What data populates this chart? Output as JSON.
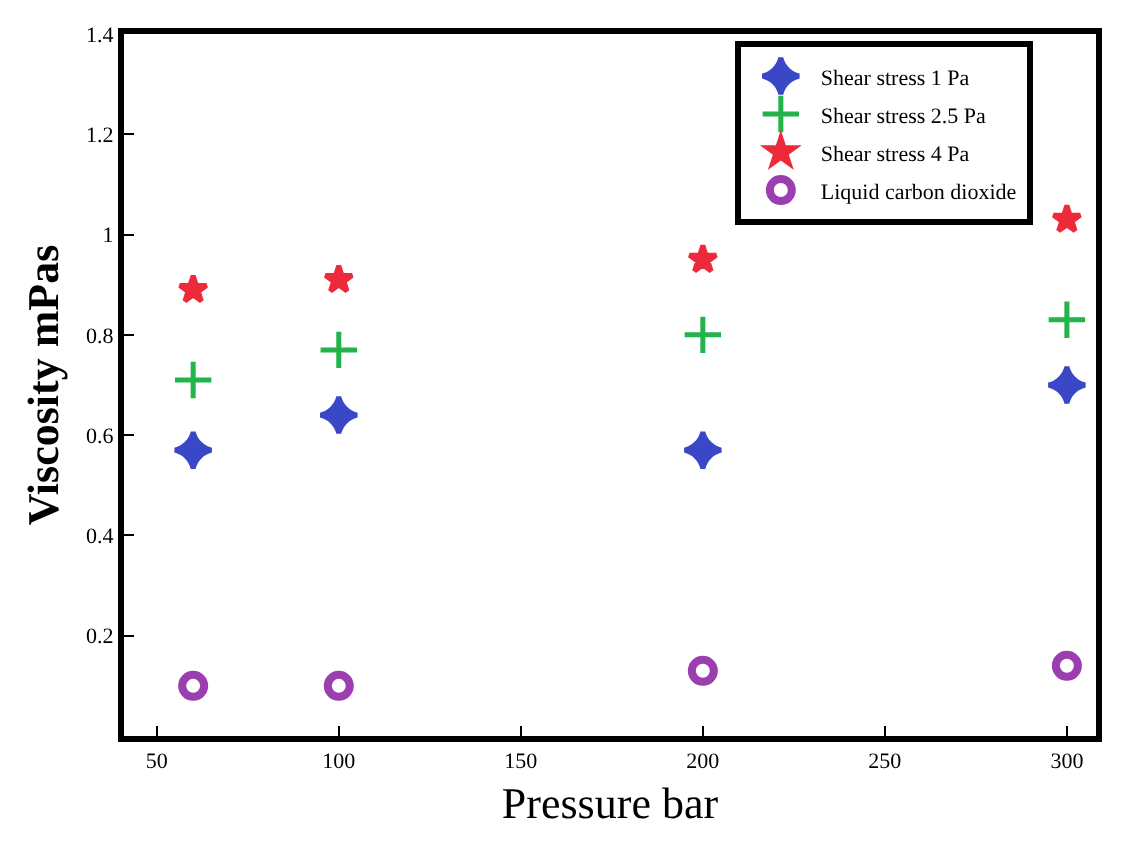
{
  "chart_data": {
    "type": "scatter",
    "xlabel": "Pressure bar",
    "ylabel": "Viscosity mPas",
    "x": [
      60,
      100,
      200,
      300
    ],
    "series": [
      {
        "name": "Shear stress 1 Pa",
        "color": "#3a48c8",
        "marker": "diamond",
        "values": [
          0.57,
          0.64,
          0.57,
          0.7
        ]
      },
      {
        "name": "Shear stress 2.5 Pa",
        "color": "#22b34a",
        "marker": "cross",
        "values": [
          0.71,
          0.77,
          0.8,
          0.83
        ]
      },
      {
        "name": "Shear stress 4 Pa",
        "color": "#ee2a3a",
        "marker": "star",
        "values": [
          0.89,
          0.91,
          0.95,
          1.03
        ]
      },
      {
        "name": "Liquid carbon dioxide",
        "color": "#9b3fb0",
        "marker": "circle",
        "values": [
          0.1,
          0.1,
          0.13,
          0.14
        ]
      }
    ],
    "xlim": [
      41,
      308
    ],
    "xticks": [
      50,
      100,
      150,
      200,
      250,
      300
    ],
    "ylim": [
      0,
      1.4
    ],
    "yticks": [
      0.2,
      0.4,
      0.6,
      0.8,
      {
        "value": 1,
        "label": "1"
      },
      1.2,
      1.4
    ],
    "grid": false,
    "legend": "top right"
  }
}
